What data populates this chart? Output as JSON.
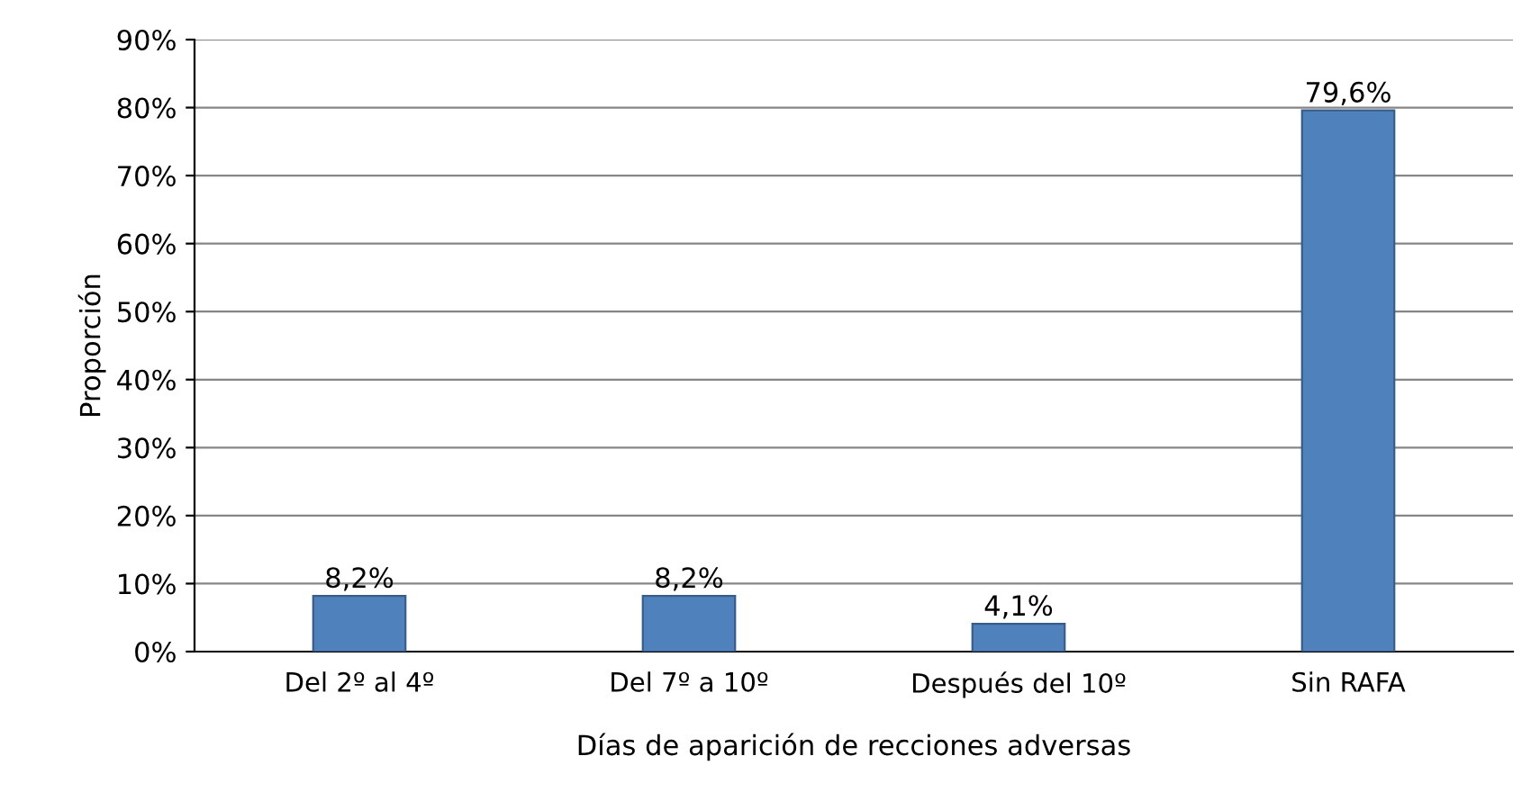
{
  "chart_data": {
    "type": "bar",
    "xlabel": "Días de aparición de recciones adversas",
    "ylabel": "Proporción",
    "categories": [
      "Del 2º al 4º",
      "Del 7º a 10º",
      "Después del 10º",
      "Sin RAFA"
    ],
    "values": [
      8.2,
      8.2,
      4.1,
      79.6
    ],
    "value_labels": [
      "8,2%",
      "8,2%",
      "4,1%",
      "79,6%"
    ],
    "color": "#4f81bd",
    "ylim": [
      0,
      90
    ],
    "yticks": [
      {
        "value": 0,
        "label": "0%"
      },
      {
        "value": 10,
        "label": "10%"
      },
      {
        "value": 20,
        "label": "20%"
      },
      {
        "value": 30,
        "label": "30%"
      },
      {
        "value": 40,
        "label": "40%"
      },
      {
        "value": 50,
        "label": "50%"
      },
      {
        "value": 60,
        "label": "60%"
      },
      {
        "value": 70,
        "label": "70%"
      },
      {
        "value": 80,
        "label": "80%"
      },
      {
        "value": 90,
        "label": "90%"
      }
    ],
    "grid": "y"
  }
}
